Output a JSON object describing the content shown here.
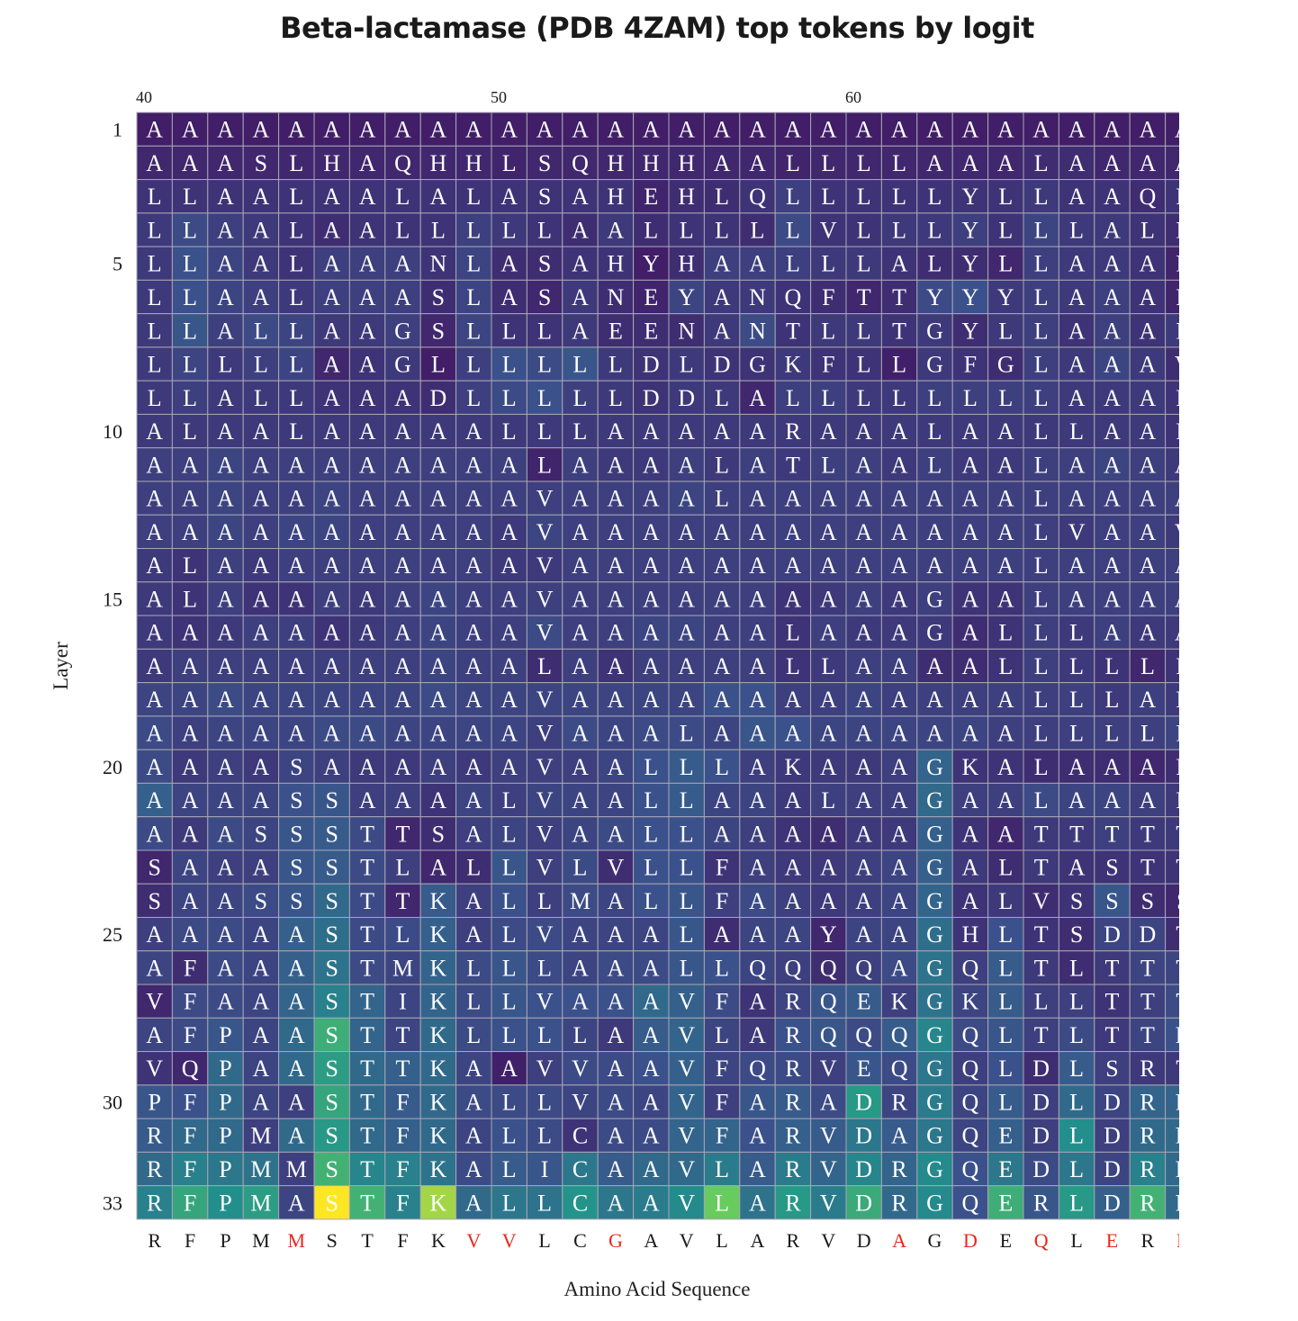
{
  "chart_data": {
    "type": "heatmap",
    "title": "Beta-lactamase (PDB 4ZAM) top tokens by logit",
    "xlabel": "Amino Acid Sequence",
    "ylabel": "Layer",
    "x_tick_labels": [
      "40",
      "50",
      "60"
    ],
    "x_start_position": 40,
    "y_tick_labels": [
      "1",
      "5",
      "10",
      "15",
      "20",
      "25",
      "30",
      "33"
    ],
    "layers": 33,
    "colormap": "viridis",
    "sequence": "RFPMMSTFKVVLCGAVLARVDAGDEQLERR",
    "mutated_positions": [
      44,
      49,
      50,
      53,
      61,
      63,
      65,
      67,
      69
    ],
    "mutated_color": "#e8291c",
    "tokens": [
      "AAAAAAAAAAAAAAAAAAAAAAAAAAAAAA",
      "AAASLHAQHHLSQHHHAALLLLAAALAAAA",
      "LLAALAALALASAHEHLQLLLLLYLLAAQL",
      "LLAALAALLLLLAALLLLLVLLLYLLLALL",
      "LLAALAAANLASAHYHAALLLALYLLAAAL",
      "LLAALAAASLASANEYANQFTTYYYLAAAL",
      "LLALLAAGSLLLAEENANTLLTGYLLAAAL",
      "LLLLLAAGLLLLLLDLDGKFLLGFGLAAAV",
      "LLALLAAADLLLLLDDLALLLLLLLLAAAL",
      "ALAALAAAAALLLAAAAARAAALAALLAAL",
      "AAAAAAAAAAALAAAALATLAALAALAAAA",
      "AAAAAAAAAAAVAAAALAAAAAAAALAAAA",
      "AAAAAAAAAAAVAAAAAAAAAAAAALVAAV",
      "ALAAAAAAAAAVAAAAAAAAAAAAALAAAA",
      "ALAAAAAAAAAVAAAAAAAAAAGAALAAAA",
      "AAAAAAAAAAAVAAAAAALAAAGALLLAAA",
      "AAAAAAAAAAALAAAAAALLAAAALLLLLL",
      "AAAAAAAAAAAVAAAAAAAAAAAAALLLAL",
      "AAAAAAAAAAAVAAALAAAAAAAAALLLLL",
      "AAAASAAAAAAVAALLLAKAAAGKALAAAL",
      "AAAASSAAAALVAALLAAALAAGAALAAAL",
      "AAASSSTTSALVAALLAAAAAAGAATTTTT",
      "SAAASSTLALLVLVLLFAAAAAGALTASTT",
      "SAASSSTTKALLMALLFAAAAAGALVSSSS",
      "AAAAASTLKALVAAALAAAYAAGHLTSDDT",
      "AFAAASTMKLLLAAALLQQQQAGQLTLTTT",
      "VFAAASTIKLLVAAAVFARQEKGKLLLTTT",
      "AFPAASTTKLLLLAAVLARQQQGQLTLTTR",
      "VQPAASTTKAAVVAAVFQRVEQGQLDLSRT",
      "PFPAASTFKALLVAAVFARADRGQLDLDRR",
      "RFPMASTFKALLCAAVFARVDAGQEDLDRR",
      "RFPMMSTFKALICAAVLARVDRGQEDLDRR",
      "RFPMASTFKALLCAAVLARVDRGQERLDRR"
    ],
    "cell_intensity": [
      [
        3,
        3,
        3,
        3,
        3,
        3,
        3,
        3,
        3,
        3,
        3,
        3,
        3,
        3,
        3,
        3,
        3,
        3,
        3,
        3,
        3,
        3,
        3,
        3,
        3,
        3,
        3,
        3,
        3,
        3
      ],
      [
        6,
        6,
        6,
        6,
        6,
        6,
        6,
        6,
        6,
        6,
        5,
        6,
        6,
        6,
        6,
        6,
        6,
        6,
        5,
        6,
        6,
        6,
        6,
        6,
        6,
        8,
        8,
        6,
        6,
        6
      ],
      [
        10,
        10,
        10,
        10,
        10,
        10,
        10,
        10,
        10,
        10,
        10,
        10,
        10,
        10,
        5,
        8,
        8,
        10,
        14,
        10,
        10,
        10,
        10,
        10,
        10,
        12,
        10,
        10,
        8,
        10
      ],
      [
        12,
        18,
        14,
        12,
        10,
        8,
        10,
        10,
        10,
        14,
        12,
        10,
        8,
        12,
        8,
        10,
        10,
        8,
        18,
        10,
        10,
        12,
        12,
        14,
        10,
        16,
        12,
        12,
        10,
        8
      ],
      [
        12,
        20,
        16,
        12,
        10,
        14,
        14,
        14,
        10,
        16,
        8,
        8,
        10,
        10,
        3,
        8,
        14,
        14,
        14,
        12,
        12,
        10,
        8,
        8,
        6,
        14,
        12,
        12,
        10,
        5
      ],
      [
        12,
        20,
        16,
        14,
        12,
        14,
        14,
        14,
        8,
        16,
        8,
        6,
        12,
        8,
        5,
        16,
        12,
        12,
        10,
        8,
        6,
        8,
        18,
        20,
        12,
        14,
        12,
        14,
        10,
        5
      ],
      [
        12,
        22,
        14,
        18,
        16,
        12,
        12,
        14,
        6,
        16,
        10,
        10,
        12,
        8,
        8,
        8,
        12,
        18,
        10,
        12,
        12,
        10,
        12,
        8,
        12,
        14,
        10,
        14,
        10,
        12
      ],
      [
        12,
        16,
        12,
        14,
        16,
        6,
        10,
        12,
        3,
        14,
        20,
        18,
        22,
        12,
        10,
        12,
        10,
        10,
        12,
        10,
        10,
        4,
        12,
        10,
        8,
        14,
        12,
        16,
        12,
        8
      ],
      [
        12,
        14,
        12,
        12,
        12,
        10,
        10,
        10,
        8,
        14,
        18,
        20,
        14,
        12,
        10,
        12,
        12,
        6,
        14,
        14,
        12,
        12,
        14,
        14,
        14,
        14,
        12,
        12,
        12,
        10
      ],
      [
        12,
        12,
        12,
        12,
        12,
        12,
        12,
        12,
        12,
        12,
        12,
        12,
        12,
        12,
        12,
        12,
        12,
        12,
        12,
        12,
        12,
        12,
        12,
        12,
        12,
        12,
        12,
        12,
        12,
        10
      ],
      [
        14,
        14,
        16,
        14,
        14,
        14,
        14,
        14,
        14,
        14,
        14,
        5,
        14,
        12,
        12,
        14,
        12,
        14,
        12,
        14,
        14,
        12,
        14,
        12,
        12,
        14,
        14,
        16,
        14,
        12
      ],
      [
        14,
        14,
        16,
        14,
        14,
        16,
        14,
        14,
        14,
        14,
        14,
        14,
        14,
        14,
        14,
        16,
        14,
        14,
        14,
        14,
        14,
        14,
        14,
        14,
        14,
        14,
        14,
        14,
        14,
        14
      ],
      [
        14,
        14,
        16,
        14,
        16,
        16,
        14,
        14,
        14,
        14,
        12,
        16,
        14,
        14,
        14,
        14,
        14,
        14,
        14,
        14,
        14,
        14,
        14,
        14,
        14,
        14,
        12,
        14,
        14,
        12
      ],
      [
        12,
        10,
        14,
        12,
        14,
        14,
        14,
        14,
        14,
        14,
        12,
        12,
        14,
        14,
        14,
        14,
        14,
        14,
        14,
        14,
        14,
        14,
        14,
        14,
        14,
        14,
        14,
        14,
        14,
        14
      ],
      [
        12,
        10,
        14,
        10,
        10,
        14,
        12,
        14,
        16,
        14,
        14,
        14,
        14,
        14,
        14,
        14,
        14,
        14,
        10,
        12,
        14,
        12,
        14,
        10,
        10,
        14,
        14,
        14,
        14,
        14
      ],
      [
        12,
        10,
        12,
        14,
        14,
        10,
        12,
        14,
        16,
        14,
        14,
        18,
        14,
        14,
        16,
        16,
        14,
        14,
        10,
        14,
        12,
        12,
        12,
        8,
        10,
        14,
        12,
        14,
        12,
        12
      ],
      [
        12,
        14,
        14,
        14,
        14,
        14,
        14,
        14,
        16,
        14,
        14,
        8,
        14,
        10,
        14,
        14,
        14,
        14,
        10,
        12,
        14,
        14,
        8,
        8,
        10,
        14,
        12,
        10,
        6,
        10
      ],
      [
        16,
        16,
        18,
        16,
        16,
        16,
        16,
        16,
        18,
        16,
        16,
        16,
        16,
        16,
        16,
        16,
        20,
        20,
        14,
        14,
        16,
        14,
        14,
        14,
        14,
        14,
        14,
        12,
        14,
        12
      ],
      [
        18,
        14,
        16,
        16,
        16,
        18,
        18,
        16,
        16,
        16,
        16,
        14,
        18,
        16,
        18,
        18,
        16,
        22,
        20,
        16,
        16,
        16,
        16,
        16,
        14,
        14,
        14,
        14,
        14,
        16
      ],
      [
        18,
        12,
        14,
        12,
        16,
        14,
        12,
        12,
        14,
        12,
        14,
        14,
        14,
        16,
        20,
        24,
        20,
        14,
        12,
        12,
        12,
        14,
        28,
        10,
        10,
        8,
        8,
        8,
        6,
        8
      ],
      [
        26,
        16,
        16,
        16,
        20,
        22,
        14,
        14,
        10,
        16,
        14,
        16,
        16,
        16,
        20,
        24,
        16,
        16,
        12,
        14,
        14,
        14,
        30,
        14,
        14,
        18,
        16,
        16,
        14,
        12
      ],
      [
        18,
        12,
        18,
        16,
        22,
        24,
        18,
        6,
        8,
        14,
        16,
        14,
        16,
        18,
        20,
        20,
        16,
        14,
        10,
        8,
        12,
        12,
        26,
        10,
        6,
        12,
        12,
        14,
        12,
        12
      ],
      [
        6,
        16,
        14,
        14,
        22,
        24,
        18,
        14,
        6,
        8,
        22,
        14,
        18,
        8,
        20,
        20,
        10,
        14,
        12,
        12,
        14,
        16,
        26,
        12,
        8,
        12,
        10,
        10,
        10,
        10
      ],
      [
        8,
        16,
        16,
        18,
        22,
        30,
        18,
        6,
        24,
        14,
        20,
        14,
        18,
        16,
        20,
        22,
        14,
        18,
        14,
        12,
        14,
        16,
        28,
        10,
        12,
        8,
        10,
        22,
        8,
        6
      ],
      [
        14,
        18,
        18,
        16,
        26,
        32,
        18,
        18,
        26,
        14,
        18,
        18,
        16,
        16,
        16,
        22,
        8,
        16,
        16,
        6,
        16,
        16,
        32,
        10,
        20,
        10,
        8,
        16,
        16,
        8
      ],
      [
        16,
        8,
        18,
        16,
        26,
        34,
        18,
        16,
        28,
        18,
        22,
        18,
        16,
        18,
        18,
        22,
        20,
        16,
        14,
        8,
        14,
        18,
        34,
        14,
        24,
        12,
        8,
        12,
        16,
        16
      ],
      [
        6,
        18,
        18,
        16,
        28,
        40,
        28,
        16,
        28,
        18,
        22,
        20,
        20,
        20,
        30,
        26,
        18,
        10,
        16,
        22,
        24,
        14,
        34,
        16,
        24,
        14,
        14,
        10,
        14,
        18
      ],
      [
        16,
        18,
        22,
        16,
        30,
        60,
        28,
        16,
        30,
        18,
        20,
        20,
        16,
        12,
        24,
        28,
        16,
        12,
        20,
        22,
        18,
        24,
        42,
        18,
        22,
        14,
        18,
        12,
        16,
        20
      ],
      [
        10,
        6,
        30,
        16,
        30,
        52,
        30,
        26,
        30,
        16,
        4,
        14,
        18,
        18,
        20,
        26,
        16,
        18,
        18,
        14,
        22,
        18,
        36,
        14,
        20,
        8,
        24,
        14,
        12,
        12
      ],
      [
        22,
        20,
        30,
        16,
        14,
        56,
        30,
        24,
        30,
        18,
        18,
        18,
        16,
        18,
        16,
        28,
        14,
        22,
        24,
        18,
        50,
        16,
        38,
        16,
        24,
        14,
        30,
        16,
        28,
        28
      ],
      [
        24,
        30,
        30,
        14,
        30,
        50,
        30,
        26,
        30,
        16,
        20,
        18,
        10,
        18,
        18,
        28,
        28,
        20,
        26,
        24,
        36,
        24,
        36,
        16,
        26,
        14,
        46,
        14,
        30,
        30
      ],
      [
        30,
        40,
        36,
        34,
        14,
        62,
        42,
        40,
        34,
        18,
        24,
        22,
        36,
        24,
        30,
        30,
        38,
        24,
        38,
        28,
        42,
        28,
        44,
        20,
        36,
        18,
        36,
        16,
        40,
        30
      ],
      [
        40,
        56,
        46,
        52,
        16,
        100,
        62,
        40,
        85,
        30,
        36,
        34,
        48,
        36,
        38,
        44,
        75,
        34,
        50,
        38,
        58,
        30,
        44,
        20,
        60,
        22,
        50,
        26,
        62,
        30
      ]
    ],
    "grid": true,
    "legend": "none"
  }
}
